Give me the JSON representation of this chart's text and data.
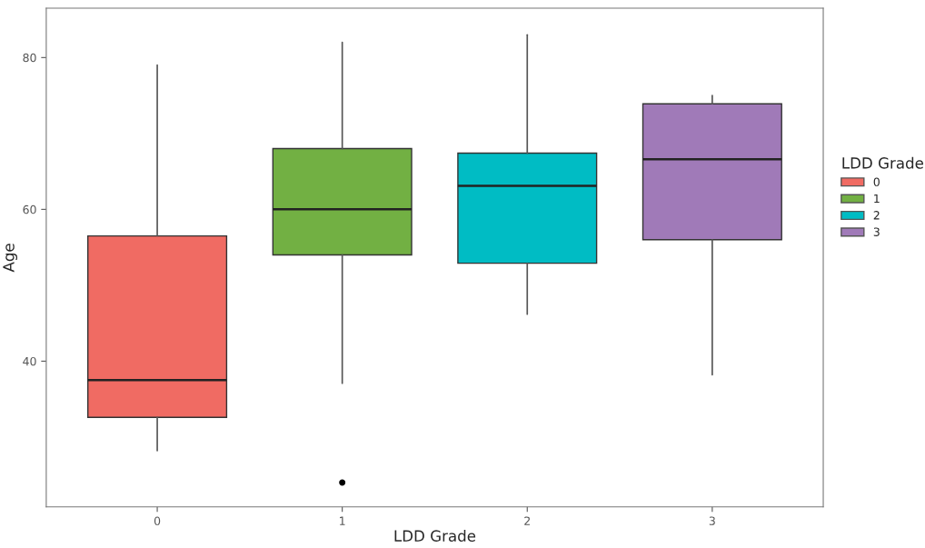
{
  "chart_data": {
    "type": "box",
    "xlabel": "LDD Grade",
    "ylabel": "Age",
    "legend_title": "LDD Grade",
    "categories": [
      "0",
      "1",
      "2",
      "3"
    ],
    "series": [
      {
        "name": "0",
        "color": "#f06b63",
        "boxes": [
          {
            "low": 28.2,
            "q1": 32.6,
            "median": 37.5,
            "q3": 56.5,
            "high": 79
          },
          null,
          null,
          null
        ]
      },
      {
        "name": "1",
        "color": "#72b043",
        "boxes": [
          null,
          {
            "low": 37.1,
            "q1": 54,
            "median": 60,
            "q3": 68,
            "high": 82,
            "outliers": [
              24
            ]
          },
          null,
          null
        ]
      },
      {
        "name": "2",
        "color": "#00bcc4",
        "boxes": [
          null,
          null,
          {
            "low": 46.2,
            "q1": 52.9,
            "median": 63.1,
            "q3": 67.4,
            "high": 83
          },
          null
        ]
      },
      {
        "name": "3",
        "color": "#a07ab8",
        "boxes": [
          null,
          null,
          null,
          {
            "low": 38.2,
            "q1": 56,
            "median": 66.6,
            "q3": 73.9,
            "high": 75
          }
        ]
      }
    ],
    "ylim": [
      20.8,
      86.5
    ],
    "yticks": [
      40,
      60,
      80
    ],
    "grid": false,
    "legend": "right"
  }
}
